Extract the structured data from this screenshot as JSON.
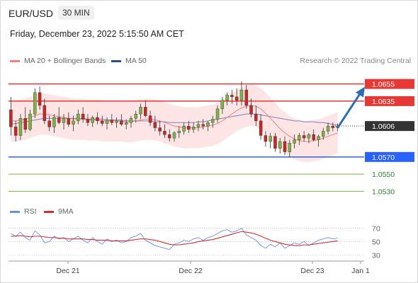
{
  "header": {
    "pair": "EUR/USD",
    "timeframe": "30 MIN",
    "datetime": "Friday, December 23, 2022 5:15:50 AM CET"
  },
  "legend": {
    "ma20_bb": "MA 20 + Bollinger Bands",
    "ma50": "MA 50",
    "credit": "Research © 2022 Trading Central",
    "rsi": "RSI",
    "nine_ma": "9MA"
  },
  "colors": {
    "up_candle": "#7cb342",
    "down_candle": "#c62828",
    "resistance": "#e53935",
    "support_blue": "#2962ff",
    "support_green": "#7cb342",
    "price_tag": "#333333",
    "arrow": "#2e6db4",
    "bb_fill": "#fde0e0",
    "ma20": "#f08080",
    "ma50": "#8080c0",
    "rsi": "#6b8ee8",
    "nine_ma": "#d32f2f"
  },
  "chart_data": [
    {
      "type": "candlestick",
      "x_ticks": [
        "Dec 21",
        "Dec 22",
        "Dec 23",
        "Jan 1"
      ],
      "ylim": [
        1.0518,
        1.0672
      ],
      "current_price": 1.0606,
      "levels": [
        {
          "label": "1.0655",
          "value": 1.0655,
          "kind": "resistance"
        },
        {
          "label": "1.0635",
          "value": 1.0635,
          "kind": "resistance"
        },
        {
          "label": "1.0570",
          "value": 1.057,
          "kind": "support"
        },
        {
          "label": "1.0550",
          "value": 1.055,
          "kind": "support2"
        },
        {
          "label": "1.0530",
          "value": 1.053,
          "kind": "support2"
        }
      ],
      "current_label": "1.0606",
      "projection": {
        "from": 1.0604,
        "to": 1.0655
      },
      "candles": [
        [
          1.0625,
          1.064,
          1.0595,
          1.0605
        ],
        [
          1.0605,
          1.0612,
          1.0588,
          1.0595
        ],
        [
          1.0595,
          1.062,
          1.059,
          1.0615
        ],
        [
          1.0615,
          1.0628,
          1.0598,
          1.0602
        ],
        [
          1.0602,
          1.0625,
          1.06,
          1.062
        ],
        [
          1.062,
          1.065,
          1.0615,
          1.0645
        ],
        [
          1.0645,
          1.0652,
          1.0625,
          1.063
        ],
        [
          1.063,
          1.0638,
          1.0608,
          1.0612
        ],
        [
          1.0612,
          1.0618,
          1.06,
          1.0605
        ],
        [
          1.0605,
          1.062,
          1.0598,
          1.0616
        ],
        [
          1.0616,
          1.0628,
          1.0608,
          1.061
        ],
        [
          1.061,
          1.062,
          1.0602,
          1.0615
        ],
        [
          1.0615,
          1.0622,
          1.0605,
          1.0608
        ],
        [
          1.0608,
          1.0618,
          1.06,
          1.0612
        ],
        [
          1.0612,
          1.0625,
          1.0608,
          1.062
        ],
        [
          1.062,
          1.0628,
          1.061,
          1.0614
        ],
        [
          1.0614,
          1.062,
          1.0606,
          1.061
        ],
        [
          1.061,
          1.0618,
          1.0605,
          1.0616
        ],
        [
          1.0616,
          1.0622,
          1.0608,
          1.0612
        ],
        [
          1.0612,
          1.0618,
          1.0606,
          1.0609
        ],
        [
          1.0609,
          1.0616,
          1.0602,
          1.0613
        ],
        [
          1.0613,
          1.062,
          1.0607,
          1.061
        ],
        [
          1.061,
          1.0616,
          1.0604,
          1.0612
        ],
        [
          1.0612,
          1.062,
          1.0606,
          1.0608
        ],
        [
          1.0608,
          1.0614,
          1.0602,
          1.061
        ],
        [
          1.061,
          1.0618,
          1.0604,
          1.0615
        ],
        [
          1.0615,
          1.0624,
          1.061,
          1.062
        ],
        [
          1.062,
          1.0632,
          1.0614,
          1.0628
        ],
        [
          1.0628,
          1.0636,
          1.0616,
          1.0618
        ],
        [
          1.0618,
          1.0624,
          1.0606,
          1.061
        ],
        [
          1.061,
          1.0618,
          1.06,
          1.0604
        ],
        [
          1.0604,
          1.0612,
          1.0595,
          1.06
        ],
        [
          1.06,
          1.0608,
          1.0592,
          1.0596
        ],
        [
          1.0596,
          1.0602,
          1.0588,
          1.0592
        ],
        [
          1.0592,
          1.06,
          1.0588,
          1.0598
        ],
        [
          1.0598,
          1.0606,
          1.0592,
          1.06
        ],
        [
          1.06,
          1.061,
          1.0596,
          1.0606
        ],
        [
          1.0606,
          1.0612,
          1.0598,
          1.0602
        ],
        [
          1.0602,
          1.061,
          1.0598,
          1.0605
        ],
        [
          1.0605,
          1.0612,
          1.06,
          1.0608
        ],
        [
          1.0608,
          1.0614,
          1.0602,
          1.0606
        ],
        [
          1.0606,
          1.0612,
          1.06,
          1.061
        ],
        [
          1.061,
          1.0618,
          1.0604,
          1.0614
        ],
        [
          1.0614,
          1.063,
          1.061,
          1.0626
        ],
        [
          1.0626,
          1.064,
          1.062,
          1.0636
        ],
        [
          1.0636,
          1.0645,
          1.063,
          1.0642
        ],
        [
          1.0642,
          1.0648,
          1.0632,
          1.064
        ],
        [
          1.064,
          1.065,
          1.063,
          1.0636
        ],
        [
          1.0636,
          1.0658,
          1.063,
          1.0648
        ],
        [
          1.0648,
          1.0654,
          1.0626,
          1.063
        ],
        [
          1.063,
          1.0638,
          1.0616,
          1.062
        ],
        [
          1.062,
          1.063,
          1.0606,
          1.0612
        ],
        [
          1.0612,
          1.062,
          1.059,
          1.0595
        ],
        [
          1.0595,
          1.06,
          1.0582,
          1.0588
        ],
        [
          1.0588,
          1.0598,
          1.058,
          1.0594
        ],
        [
          1.0594,
          1.0598,
          1.0576,
          1.058
        ],
        [
          1.058,
          1.0592,
          1.0574,
          1.0588
        ],
        [
          1.0588,
          1.0594,
          1.0572,
          1.0576
        ],
        [
          1.0576,
          1.059,
          1.057,
          1.0586
        ],
        [
          1.0586,
          1.0596,
          1.058,
          1.059
        ],
        [
          1.059,
          1.0598,
          1.0584,
          1.0595
        ],
        [
          1.0595,
          1.06,
          1.0588,
          1.0592
        ],
        [
          1.0592,
          1.0598,
          1.0586,
          1.0596
        ],
        [
          1.0596,
          1.0602,
          1.0588,
          1.059
        ],
        [
          1.059,
          1.0596,
          1.0582,
          1.0594
        ],
        [
          1.0594,
          1.0604,
          1.059,
          1.06
        ],
        [
          1.06,
          1.061,
          1.0596,
          1.0606
        ],
        [
          1.0606,
          1.061,
          1.06,
          1.0604
        ],
        [
          1.0604,
          1.0609,
          1.06,
          1.0606
        ]
      ],
      "ma20": [
        1.0612,
        1.0612,
        1.0613,
        1.0614,
        1.0616,
        1.0618,
        1.062,
        1.062,
        1.0619,
        1.0618,
        1.0617,
        1.0616,
        1.0615,
        1.0614,
        1.0614,
        1.0614,
        1.0613,
        1.0613,
        1.0613,
        1.0612,
        1.0612,
        1.0612,
        1.0612,
        1.0612,
        1.0611,
        1.0611,
        1.0612,
        1.0613,
        1.0614,
        1.0614,
        1.0613,
        1.0612,
        1.061,
        1.0608,
        1.0606,
        1.0605,
        1.0604,
        1.0604,
        1.0604,
        1.0604,
        1.0605,
        1.0606,
        1.0607,
        1.0609,
        1.0612,
        1.0616,
        1.062,
        1.0624,
        1.0627,
        1.0629,
        1.063,
        1.0629,
        1.0626,
        1.0621,
        1.0615,
        1.0609,
        1.0603,
        1.0598,
        1.0594,
        1.0591,
        1.0589,
        1.0588,
        1.0588,
        1.0589,
        1.059,
        1.0592,
        1.0594,
        1.0596,
        1.0598
      ],
      "ma50": [
        1.0608,
        1.0609,
        1.061,
        1.0611,
        1.0612,
        1.0613,
        1.0614,
        1.0615,
        1.0615,
        1.0615,
        1.0615,
        1.0615,
        1.0615,
        1.0615,
        1.0615,
        1.0615,
        1.0614,
        1.0614,
        1.0614,
        1.0614,
        1.0613,
        1.0613,
        1.0613,
        1.0613,
        1.0612,
        1.0612,
        1.0612,
        1.0612,
        1.0612,
        1.0612,
        1.0611,
        1.0611,
        1.0611,
        1.061,
        1.061,
        1.061,
        1.061,
        1.061,
        1.061,
        1.0611,
        1.0611,
        1.0612,
        1.0613,
        1.0614,
        1.0615,
        1.0616,
        1.0617,
        1.0618,
        1.0619,
        1.062,
        1.062,
        1.062,
        1.0619,
        1.0618,
        1.0617,
        1.0616,
        1.0615,
        1.0614,
        1.0613,
        1.0612,
        1.0612,
        1.0611,
        1.0611,
        1.0611,
        1.061,
        1.061,
        1.0609,
        1.0608,
        1.0607
      ],
      "bb_width": 0.0024
    },
    {
      "type": "line",
      "ylim": [
        25,
        78
      ],
      "y_ticks": [
        70,
        50,
        30
      ],
      "series": [
        {
          "name": "RSI",
          "values": [
            62,
            58,
            64,
            56,
            52,
            66,
            60,
            48,
            50,
            58,
            54,
            56,
            50,
            54,
            58,
            52,
            48,
            56,
            50,
            46,
            54,
            50,
            52,
            48,
            50,
            56,
            58,
            62,
            52,
            48,
            44,
            42,
            40,
            38,
            46,
            48,
            52,
            50,
            54,
            56,
            52,
            56,
            58,
            62,
            66,
            68,
            64,
            66,
            70,
            60,
            56,
            52,
            44,
            40,
            46,
            42,
            48,
            40,
            44,
            48,
            46,
            50,
            44,
            48,
            52,
            54,
            56,
            54,
            55
          ]
        },
        {
          "name": "9MA",
          "values": [
            58,
            58,
            59,
            58,
            57,
            58,
            58,
            57,
            56,
            56,
            55,
            55,
            54,
            54,
            54,
            54,
            53,
            53,
            52,
            52,
            52,
            51,
            51,
            51,
            51,
            52,
            53,
            54,
            54,
            53,
            52,
            50,
            48,
            46,
            45,
            45,
            46,
            47,
            48,
            50,
            51,
            52,
            53,
            55,
            57,
            59,
            61,
            63,
            65,
            64,
            63,
            61,
            58,
            55,
            52,
            50,
            48,
            46,
            45,
            44,
            44,
            45,
            45,
            46,
            47,
            48,
            49,
            50,
            51
          ]
        }
      ]
    }
  ]
}
